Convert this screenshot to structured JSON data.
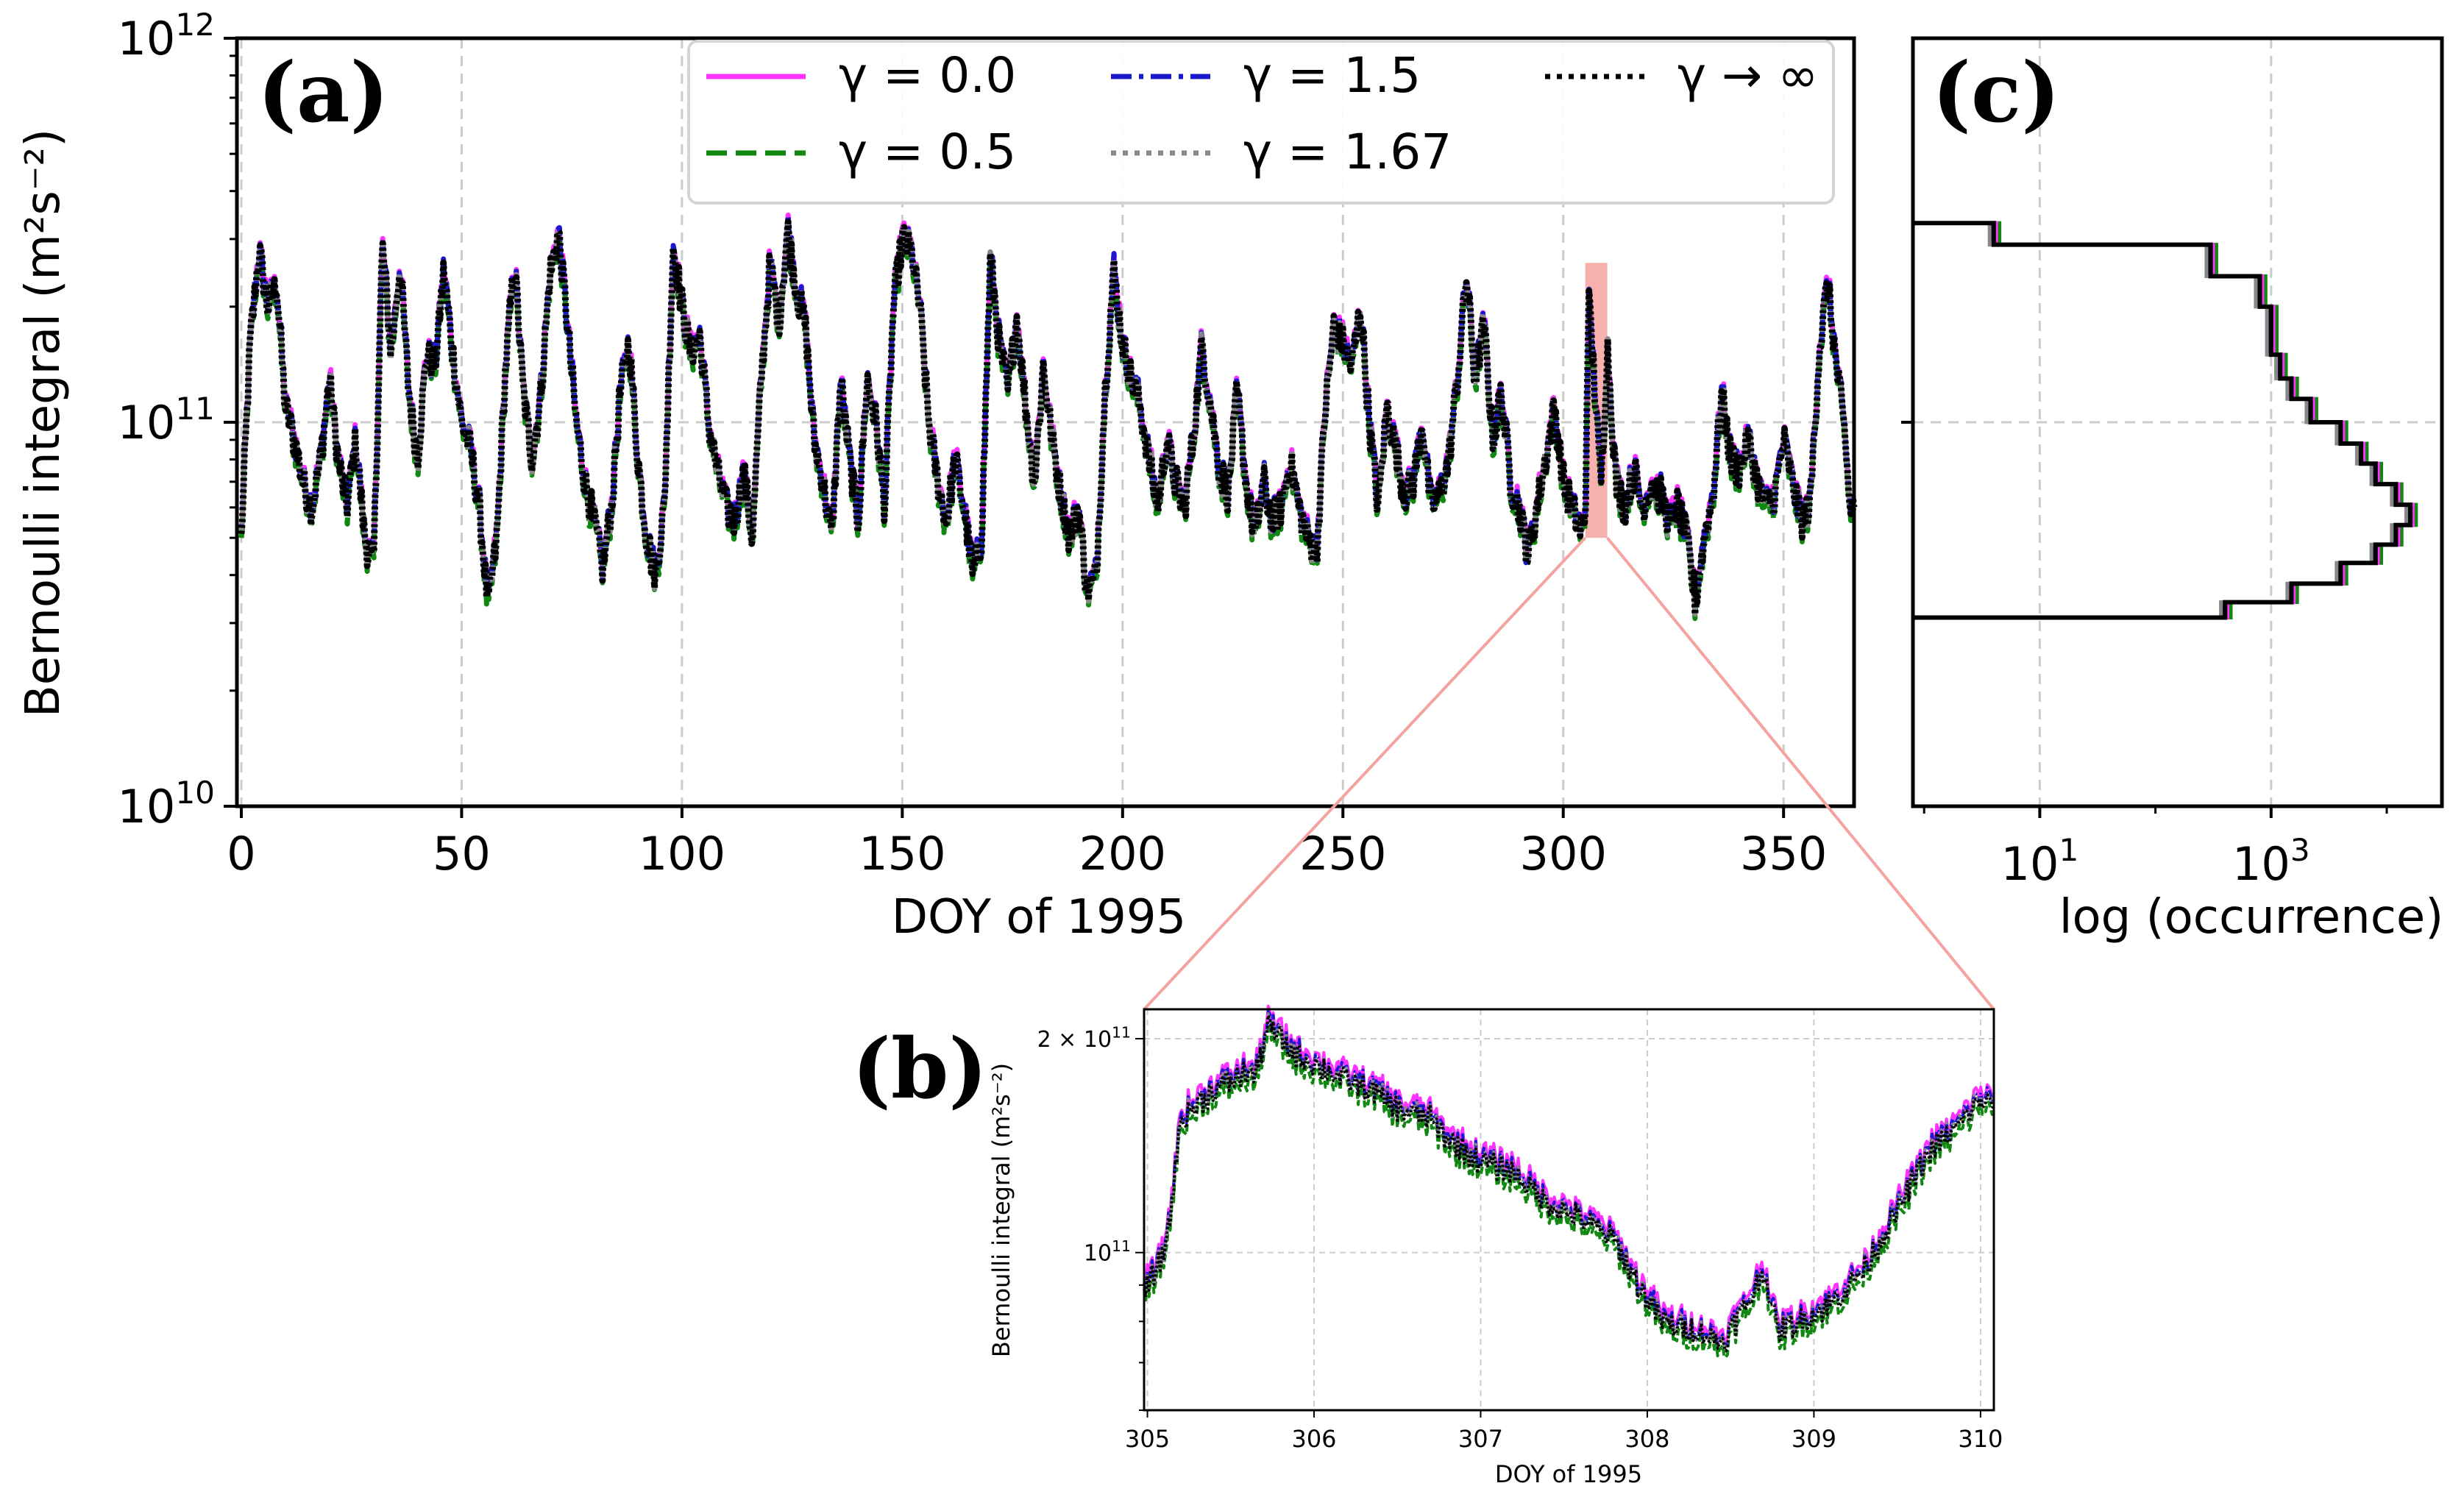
{
  "figure": {
    "panel_labels": [
      "(a)",
      "(b)",
      "(c)"
    ]
  },
  "colors": {
    "gamma_0_0": "#ff33ff",
    "gamma_0_5": "#118811",
    "gamma_1_5": "#1a1acc",
    "gamma_1_67": "#888888",
    "gamma_inf": "#000000",
    "highlight": "#f4a3a0",
    "zoom_lines": "#f4a3a0",
    "grid": "#cccccc"
  },
  "legend": {
    "entries": [
      {
        "label": "γ = 0.0",
        "style": "solid",
        "color_key": "gamma_0_0"
      },
      {
        "label": "γ = 0.5",
        "style": "dashed",
        "color_key": "gamma_0_5"
      },
      {
        "label": "γ = 1.5",
        "style": "dashdot",
        "color_key": "gamma_1_5"
      },
      {
        "label": "γ = 1.67",
        "style": "dotted",
        "color_key": "gamma_1_67"
      },
      {
        "label": "γ → ∞",
        "style": "dotted",
        "color_key": "gamma_inf"
      }
    ]
  },
  "chart_data": [
    {
      "id": "a",
      "type": "line",
      "title": "",
      "xlabel": "DOY of 1995",
      "ylabel": "Bernoulli integral (m²s⁻²)",
      "yscale": "log",
      "xlim": [
        -1,
        366
      ],
      "ylim": [
        10000000000.0,
        1000000000000.0
      ],
      "x_ticks": [
        0,
        50,
        100,
        150,
        200,
        250,
        300,
        350
      ],
      "x_tick_labels": [
        "0",
        "50",
        "100",
        "150",
        "200",
        "250",
        "300",
        "350"
      ],
      "y_ticks": [
        10000000000.0,
        100000000000.0,
        1000000000000.0
      ],
      "y_tick_labels": [
        {
          "base": "10",
          "exp": "10"
        },
        {
          "base": "10",
          "exp": "11"
        },
        {
          "base": "10",
          "exp": "12"
        }
      ],
      "grid": true,
      "highlight_range": {
        "x": [
          305,
          310
        ],
        "y": [
          50000000000.0,
          260000000000.0
        ]
      },
      "series_names": [
        "γ = 0.0",
        "γ = 0.5",
        "γ = 1.5",
        "γ = 1.67",
        "γ → ∞"
      ],
      "keypoints": [
        [
          0,
          50000000000.0
        ],
        [
          2,
          160000000000.0
        ],
        [
          4,
          280000000000.0
        ],
        [
          6,
          200000000000.0
        ],
        [
          8,
          230000000000.0
        ],
        [
          10,
          110000000000.0
        ],
        [
          12,
          90000000000.0
        ],
        [
          14,
          70000000000.0
        ],
        [
          16,
          60000000000.0
        ],
        [
          18,
          80000000000.0
        ],
        [
          20,
          130000000000.0
        ],
        [
          22,
          80000000000.0
        ],
        [
          24,
          60000000000.0
        ],
        [
          26,
          90000000000.0
        ],
        [
          28,
          50000000000.0
        ],
        [
          30,
          42000000000.0
        ],
        [
          32,
          290000000000.0
        ],
        [
          34,
          150000000000.0
        ],
        [
          36,
          260000000000.0
        ],
        [
          38,
          120000000000.0
        ],
        [
          40,
          80000000000.0
        ],
        [
          42,
          150000000000.0
        ],
        [
          44,
          140000000000.0
        ],
        [
          46,
          250000000000.0
        ],
        [
          48,
          150000000000.0
        ],
        [
          50,
          100000000000.0
        ],
        [
          52,
          85000000000.0
        ],
        [
          54,
          60000000000.0
        ],
        [
          56,
          33000000000.0
        ],
        [
          58,
          50000000000.0
        ],
        [
          60,
          140000000000.0
        ],
        [
          62,
          260000000000.0
        ],
        [
          64,
          120000000000.0
        ],
        [
          66,
          80000000000.0
        ],
        [
          68,
          120000000000.0
        ],
        [
          70,
          240000000000.0
        ],
        [
          72,
          310000000000.0
        ],
        [
          74,
          180000000000.0
        ],
        [
          76,
          100000000000.0
        ],
        [
          78,
          70000000000.0
        ],
        [
          80,
          55000000000.0
        ],
        [
          82,
          42000000000.0
        ],
        [
          84,
          60000000000.0
        ],
        [
          86,
          120000000000.0
        ],
        [
          88,
          160000000000.0
        ],
        [
          90,
          80000000000.0
        ],
        [
          92,
          50000000000.0
        ],
        [
          94,
          40000000000.0
        ],
        [
          96,
          60000000000.0
        ],
        [
          98,
          290000000000.0
        ],
        [
          100,
          200000000000.0
        ],
        [
          102,
          150000000000.0
        ],
        [
          104,
          170000000000.0
        ],
        [
          106,
          100000000000.0
        ],
        [
          108,
          75000000000.0
        ],
        [
          110,
          60000000000.0
        ],
        [
          112,
          55000000000.0
        ],
        [
          114,
          75000000000.0
        ],
        [
          116,
          50000000000.0
        ],
        [
          118,
          130000000000.0
        ],
        [
          120,
          260000000000.0
        ],
        [
          122,
          180000000000.0
        ],
        [
          124,
          320000000000.0
        ],
        [
          126,
          220000000000.0
        ],
        [
          128,
          180000000000.0
        ],
        [
          130,
          90000000000.0
        ],
        [
          132,
          70000000000.0
        ],
        [
          134,
          50000000000.0
        ],
        [
          136,
          130000000000.0
        ],
        [
          138,
          80000000000.0
        ],
        [
          140,
          55000000000.0
        ],
        [
          142,
          130000000000.0
        ],
        [
          144,
          100000000000.0
        ],
        [
          146,
          60000000000.0
        ],
        [
          148,
          200000000000.0
        ],
        [
          150,
          300000000000.0
        ],
        [
          152,
          280000000000.0
        ],
        [
          154,
          200000000000.0
        ],
        [
          156,
          100000000000.0
        ],
        [
          158,
          70000000000.0
        ],
        [
          160,
          55000000000.0
        ],
        [
          162,
          80000000000.0
        ],
        [
          164,
          60000000000.0
        ],
        [
          166,
          40000000000.0
        ],
        [
          168,
          50000000000.0
        ],
        [
          170,
          270000000000.0
        ],
        [
          172,
          160000000000.0
        ],
        [
          174,
          120000000000.0
        ],
        [
          176,
          190000000000.0
        ],
        [
          178,
          110000000000.0
        ],
        [
          180,
          70000000000.0
        ],
        [
          182,
          140000000000.0
        ],
        [
          184,
          90000000000.0
        ],
        [
          186,
          65000000000.0
        ],
        [
          188,
          50000000000.0
        ],
        [
          190,
          60000000000.0
        ],
        [
          192,
          36000000000.0
        ],
        [
          194,
          40000000000.0
        ],
        [
          196,
          120000000000.0
        ],
        [
          198,
          250000000000.0
        ],
        [
          200,
          160000000000.0
        ],
        [
          202,
          130000000000.0
        ],
        [
          204,
          110000000000.0
        ],
        [
          206,
          80000000000.0
        ],
        [
          208,
          60000000000.0
        ],
        [
          210,
          90000000000.0
        ],
        [
          212,
          70000000000.0
        ],
        [
          214,
          60000000000.0
        ],
        [
          216,
          90000000000.0
        ],
        [
          218,
          160000000000.0
        ],
        [
          220,
          110000000000.0
        ],
        [
          222,
          75000000000.0
        ],
        [
          224,
          65000000000.0
        ],
        [
          226,
          120000000000.0
        ],
        [
          228,
          70000000000.0
        ],
        [
          230,
          50000000000.0
        ],
        [
          232,
          70000000000.0
        ],
        [
          234,
          55000000000.0
        ],
        [
          236,
          60000000000.0
        ],
        [
          238,
          80000000000.0
        ],
        [
          240,
          60000000000.0
        ],
        [
          242,
          50000000000.0
        ],
        [
          244,
          45000000000.0
        ],
        [
          246,
          110000000000.0
        ],
        [
          248,
          180000000000.0
        ],
        [
          250,
          160000000000.0
        ],
        [
          252,
          140000000000.0
        ],
        [
          254,
          200000000000.0
        ],
        [
          256,
          100000000000.0
        ],
        [
          258,
          60000000000.0
        ],
        [
          260,
          110000000000.0
        ],
        [
          262,
          85000000000.0
        ],
        [
          264,
          65000000000.0
        ],
        [
          266,
          70000000000.0
        ],
        [
          268,
          100000000000.0
        ],
        [
          270,
          60000000000.0
        ],
        [
          272,
          65000000000.0
        ],
        [
          274,
          80000000000.0
        ],
        [
          276,
          130000000000.0
        ],
        [
          278,
          240000000000.0
        ],
        [
          280,
          130000000000.0
        ],
        [
          282,
          180000000000.0
        ],
        [
          284,
          90000000000.0
        ],
        [
          286,
          120000000000.0
        ],
        [
          288,
          70000000000.0
        ],
        [
          290,
          60000000000.0
        ],
        [
          292,
          45000000000.0
        ],
        [
          294,
          60000000000.0
        ],
        [
          296,
          80000000000.0
        ],
        [
          298,
          110000000000.0
        ],
        [
          300,
          70000000000.0
        ],
        [
          302,
          60000000000.0
        ],
        [
          304,
          52000000000.0
        ],
        [
          305,
          55000000000.0
        ],
        [
          305.7,
          210000000000.0
        ],
        [
          306.5,
          160000000000.0
        ],
        [
          307,
          130000000000.0
        ],
        [
          307.5,
          110000000000.0
        ],
        [
          308,
          85000000000.0
        ],
        [
          308.5,
          70000000000.0
        ],
        [
          309,
          85000000000.0
        ],
        [
          310,
          160000000000.0
        ],
        [
          312,
          70000000000.0
        ],
        [
          314,
          60000000000.0
        ],
        [
          316,
          75000000000.0
        ],
        [
          318,
          60000000000.0
        ],
        [
          320,
          70000000000.0
        ],
        [
          322,
          65000000000.0
        ],
        [
          324,
          55000000000.0
        ],
        [
          326,
          60000000000.0
        ],
        [
          328,
          50000000000.0
        ],
        [
          330,
          34000000000.0
        ],
        [
          332,
          50000000000.0
        ],
        [
          334,
          65000000000.0
        ],
        [
          336,
          120000000000.0
        ],
        [
          338,
          80000000000.0
        ],
        [
          340,
          75000000000.0
        ],
        [
          342,
          90000000000.0
        ],
        [
          344,
          70000000000.0
        ],
        [
          346,
          60000000000.0
        ],
        [
          348,
          65000000000.0
        ],
        [
          350,
          90000000000.0
        ],
        [
          352,
          70000000000.0
        ],
        [
          354,
          55000000000.0
        ],
        [
          356,
          60000000000.0
        ],
        [
          358,
          150000000000.0
        ],
        [
          360,
          230000000000.0
        ],
        [
          362,
          140000000000.0
        ],
        [
          364,
          90000000000.0
        ],
        [
          365,
          60000000000.0
        ]
      ]
    },
    {
      "id": "b",
      "type": "line",
      "title": "",
      "xlabel": "DOY of 1995",
      "ylabel": "Bernoulli integral (m²s⁻²)",
      "yscale": "log",
      "xlim": [
        304.98,
        310.08
      ],
      "ylim": [
        60000000000.0,
        220000000000.0
      ],
      "x_ticks": [
        305,
        306,
        307,
        308,
        309,
        310
      ],
      "x_tick_labels": [
        "305",
        "306",
        "307",
        "308",
        "309",
        "310"
      ],
      "y_ticks": [
        100000000000.0,
        200000000000.0
      ],
      "y_tick_labels": [
        {
          "base": "10",
          "exp": "11"
        },
        {
          "prefix": "2 × 10",
          "exp": "11"
        }
      ],
      "grid": true,
      "series_names": [
        "γ = 0.0",
        "γ = 0.5",
        "γ = 1.5",
        "γ = 1.67",
        "γ → ∞"
      ],
      "keypoints": [
        [
          305.0,
          90000000000.0
        ],
        [
          305.1,
          100000000000.0
        ],
        [
          305.15,
          120000000000.0
        ],
        [
          305.2,
          155000000000.0
        ],
        [
          305.4,
          170000000000.0
        ],
        [
          305.6,
          180000000000.0
        ],
        [
          305.65,
          178000000000.0
        ],
        [
          305.72,
          210000000000.0
        ],
        [
          305.9,
          190000000000.0
        ],
        [
          306.0,
          185000000000.0
        ],
        [
          306.2,
          175000000000.0
        ],
        [
          306.35,
          170000000000.0
        ],
        [
          306.5,
          160000000000.0
        ],
        [
          306.7,
          155000000000.0
        ],
        [
          306.8,
          145000000000.0
        ],
        [
          307.0,
          135000000000.0
        ],
        [
          307.2,
          130000000000.0
        ],
        [
          307.4,
          118000000000.0
        ],
        [
          307.6,
          112000000000.0
        ],
        [
          307.8,
          105000000000.0
        ],
        [
          307.95,
          90000000000.0
        ],
        [
          308.1,
          80000000000.0
        ],
        [
          308.3,
          78000000000.0
        ],
        [
          308.45,
          75000000000.0
        ],
        [
          308.6,
          85000000000.0
        ],
        [
          308.7,
          95000000000.0
        ],
        [
          308.78,
          78000000000.0
        ],
        [
          308.9,
          80000000000.0
        ],
        [
          309.1,
          85000000000.0
        ],
        [
          309.3,
          95000000000.0
        ],
        [
          309.5,
          115000000000.0
        ],
        [
          309.7,
          140000000000.0
        ],
        [
          309.85,
          150000000000.0
        ],
        [
          310.0,
          165000000000.0
        ],
        [
          310.08,
          162000000000.0
        ]
      ]
    },
    {
      "id": "c",
      "type": "histogram",
      "title": "",
      "xlabel": "log (occurrence)",
      "ylabel": "",
      "xscale": "log",
      "yscale": "log",
      "xlim": [
        0.8,
        30000
      ],
      "ylim": [
        10000000000.0,
        1000000000000.0
      ],
      "x_ticks": [
        10,
        1000
      ],
      "x_tick_labels": [
        {
          "base": "10",
          "exp": "1"
        },
        {
          "base": "10",
          "exp": "3"
        }
      ],
      "grid": true,
      "orientation": "horizontal",
      "bins": [
        {
          "lo": 31000000000.0,
          "hi": 34000000000.0,
          "count": 400
        },
        {
          "lo": 34000000000.0,
          "hi": 38000000000.0,
          "count": 1500
        },
        {
          "lo": 38000000000.0,
          "hi": 43000000000.0,
          "count": 4000
        },
        {
          "lo": 43000000000.0,
          "hi": 48000000000.0,
          "count": 8000
        },
        {
          "lo": 48000000000.0,
          "hi": 54000000000.0,
          "count": 12000
        },
        {
          "lo": 54000000000.0,
          "hi": 61000000000.0,
          "count": 16000
        },
        {
          "lo": 61000000000.0,
          "hi": 69000000000.0,
          "count": 12000
        },
        {
          "lo": 69000000000.0,
          "hi": 78000000000.0,
          "count": 8000
        },
        {
          "lo": 78000000000.0,
          "hi": 88000000000.0,
          "count": 6000
        },
        {
          "lo": 88000000000.0,
          "hi": 100000000000.0,
          "count": 4000
        },
        {
          "lo": 100000000000.0,
          "hi": 115000000000.0,
          "count": 2200
        },
        {
          "lo": 115000000000.0,
          "hi": 130000000000.0,
          "count": 1500
        },
        {
          "lo": 130000000000.0,
          "hi": 150000000000.0,
          "count": 1200
        },
        {
          "lo": 150000000000.0,
          "hi": 175000000000.0,
          "count": 1000
        },
        {
          "lo": 175000000000.0,
          "hi": 200000000000.0,
          "count": 1000
        },
        {
          "lo": 200000000000.0,
          "hi": 240000000000.0,
          "count": 800
        },
        {
          "lo": 240000000000.0,
          "hi": 290000000000.0,
          "count": 300
        },
        {
          "lo": 290000000000.0,
          "hi": 330000000000.0,
          "count": 4
        }
      ]
    }
  ]
}
